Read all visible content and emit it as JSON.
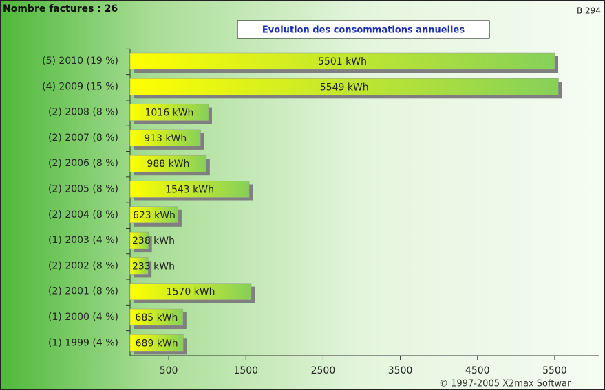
{
  "chart_data": {
    "type": "hbar",
    "header": "Nombre factures : 26",
    "corner_label": "B 294",
    "title": "Evolution des consommations annuelles",
    "footer": "© 1997-2005 X2max Softwar",
    "categories": [
      "(5) 2010 (19 %)",
      "(4) 2009 (15 %)",
      "(2) 2008 (8 %)",
      "(2) 2007 (8 %)",
      "(2) 2006 (8 %)",
      "(2) 2005 (8 %)",
      "(2) 2004 (8 %)",
      "(1) 2003 (4 %)",
      "(2) 2002 (8 %)",
      "(2) 2001 (8 %)",
      "(1) 2000 (4 %)",
      "(1) 1999 (4 %)"
    ],
    "values": [
      5501,
      5549,
      1016,
      913,
      988,
      1543,
      623,
      238,
      233,
      1570,
      685,
      689
    ],
    "value_labels": [
      "5501 kWh",
      "5549 kWh",
      "1016 kWh",
      "913 kWh",
      "988 kWh",
      "1543 kWh",
      "623 kWh",
      "238 kWh",
      "233 kWh",
      "1570 kWh",
      "685 kWh",
      "689 kWh"
    ],
    "color_start": "#ffff00",
    "color_end": "#86d05a",
    "xlim": [
      0,
      6000
    ],
    "xticks": [
      500,
      1500,
      2500,
      3500,
      4500,
      5500
    ]
  }
}
